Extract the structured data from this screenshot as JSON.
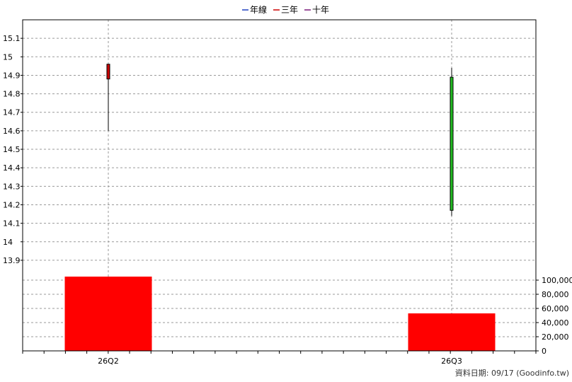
{
  "chart_data": {
    "type": "candlestick",
    "legend": [
      {
        "label": "年線",
        "color": "#1f3fbf"
      },
      {
        "label": "三年",
        "color": "#cc0000"
      },
      {
        "label": "十年",
        "color": "#7a1a7a"
      }
    ],
    "legend_position": "top-center",
    "categories": [
      "26Q2",
      "26Q3"
    ],
    "price_axis": {
      "position": "left",
      "ylim": [
        13.85,
        15.2
      ],
      "ticks": [
        13.9,
        14,
        14.1,
        14.2,
        14.3,
        14.4,
        14.5,
        14.6,
        14.7,
        14.8,
        14.9,
        15,
        15.1
      ],
      "tick_labels": [
        "13.9",
        "14",
        "14.1",
        "14.2",
        "14.3",
        "14.4",
        "14.5",
        "14.6",
        "14.7",
        "14.8",
        "14.9",
        "15",
        "15.1"
      ]
    },
    "candles": [
      {
        "category": "26Q2",
        "open": 14.88,
        "high": 14.96,
        "low": 14.6,
        "close": 14.96,
        "color": "#cc0000"
      },
      {
        "category": "26Q3",
        "open": 14.89,
        "high": 14.94,
        "low": 14.14,
        "close": 14.17,
        "color": "#22bb22"
      }
    ],
    "volume_axis": {
      "position": "right",
      "ylim": [
        0,
        113000
      ],
      "ticks": [
        0,
        20000,
        40000,
        60000,
        80000,
        100000
      ],
      "tick_labels": [
        "0",
        "20,000",
        "40,000",
        "60,000",
        "80,000",
        "100,000"
      ]
    },
    "volume_bars": [
      {
        "category": "26Q2",
        "value": 105000,
        "color": "#ff0000"
      },
      {
        "category": "26Q3",
        "value": 53000,
        "color": "#ff0000"
      }
    ],
    "grid": true,
    "footer_text": "資料日期: 09/17  (Goodinfo.tw)"
  }
}
